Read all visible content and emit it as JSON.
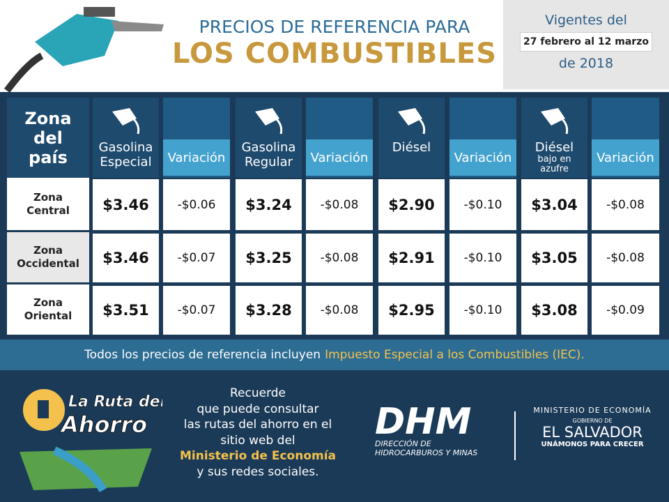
{
  "header": {
    "title_line1": "PRECIOS DE REFERENCIA PARA",
    "title_line2": "LOS COMBUSTIBLES",
    "validity": {
      "line1": "Vigentes del",
      "dates": "27 febrero al 12 marzo",
      "line3": "de 2018"
    }
  },
  "table": {
    "zone_header": "Zona del país",
    "columns": [
      {
        "name": "Gasolina Especial"
      },
      {
        "name": "Variación"
      },
      {
        "name": "Gasolina Regular"
      },
      {
        "name": "Variación"
      },
      {
        "name": "Diésel"
      },
      {
        "name": "Variación"
      },
      {
        "name": "Diésel",
        "sub": "bajo en azufre"
      },
      {
        "name": "Variación"
      }
    ],
    "rows": [
      {
        "zone": "Zona Central",
        "cells": [
          "$3.46",
          "-$0.06",
          "$3.24",
          "-$0.08",
          "$2.90",
          "-$0.10",
          "$3.04",
          "-$0.08"
        ]
      },
      {
        "zone": "Zona Occidental",
        "cells": [
          "$3.46",
          "-$0.07",
          "$3.25",
          "-$0.08",
          "$2.91",
          "-$0.10",
          "$3.05",
          "-$0.08"
        ]
      },
      {
        "zone": "Zona Oriental",
        "cells": [
          "$3.51",
          "-$0.07",
          "$3.28",
          "-$0.08",
          "$2.95",
          "-$0.10",
          "$3.08",
          "-$0.09"
        ]
      }
    ]
  },
  "footnote": {
    "text": "Todos los precios de referencia incluyen",
    "highlight": "Impuesto Especial a los Combustibles (IEC)."
  },
  "footer": {
    "logo": {
      "line1": "La Ruta del",
      "line2": "Ahorro"
    },
    "message": {
      "lines": [
        "Recuerde",
        "que puede consultar",
        "las rutas del ahorro en el",
        "sitio web del"
      ],
      "highlight": "Ministerio de Economía",
      "last": "y sus redes sociales."
    },
    "dhm": {
      "acronym": "DHM",
      "line1": "DIRECCIÓN DE",
      "line2": "HIDROCARBUROS Y MINAS"
    },
    "ministry": {
      "line1": "MINISTERIO DE ECONOMÍA",
      "line2": "GOBIERNO DE",
      "line3": "EL SALVADOR",
      "line4": "UNÁMONOS PARA CRECER"
    }
  }
}
